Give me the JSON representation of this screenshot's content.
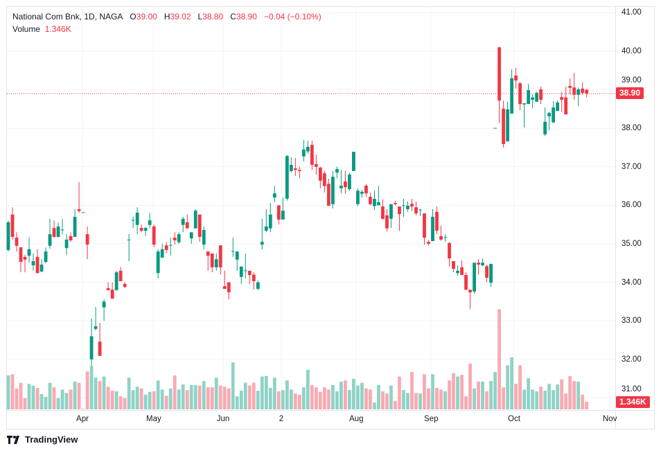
{
  "legend": {
    "symbol": "National Com Bnk, 1D, NAGA",
    "open_label": "O",
    "open": "39.00",
    "high_label": "H",
    "high": "39.02",
    "low_label": "L",
    "low": "38.80",
    "close_label": "C",
    "close": "38.90",
    "change": "−0.04 (−0.10%)",
    "volume_label": "Volume",
    "volume": "1.346K"
  },
  "price_axis": {
    "ticks": [
      "41.00",
      "40.00",
      "39.00",
      "38.00",
      "37.00",
      "36.00",
      "35.00",
      "34.00",
      "33.00",
      "32.00",
      "31.00"
    ],
    "last_price_label": "38.90",
    "last_volume_label": "1.346K"
  },
  "time_axis": {
    "ticks": [
      "Apr",
      "May",
      "Jun",
      "2",
      "Aug",
      "Sep",
      "Oct",
      "Nov"
    ]
  },
  "branding": {
    "name": "TradingView"
  },
  "colors": {
    "up": "#089981",
    "down": "#f23645",
    "volume_up": "#8fd3c6",
    "volume_down": "#f9aab2",
    "grid": "#f0f3fa"
  },
  "chart_data": {
    "type": "candlestick",
    "columns": [
      "open",
      "high",
      "low",
      "close",
      "volume_K"
    ],
    "ylim": [
      31,
      41
    ],
    "last_price": 38.9,
    "candles": [
      [
        34.84,
        35.6,
        34.8,
        35.56,
        6.0
      ],
      [
        35.76,
        35.95,
        35.11,
        35.18,
        6.2
      ],
      [
        35.16,
        35.3,
        34.8,
        34.95,
        3.7
      ],
      [
        34.91,
        34.91,
        34.26,
        34.53,
        4.7
      ],
      [
        34.66,
        34.71,
        34.26,
        34.59,
        2.0
      ],
      [
        34.69,
        35.16,
        34.51,
        34.86,
        4.5
      ],
      [
        34.44,
        34.75,
        34.3,
        34.55,
        4.2
      ],
      [
        34.66,
        34.86,
        34.24,
        34.24,
        3.8
      ],
      [
        34.28,
        34.6,
        34.26,
        34.46,
        2.7
      ],
      [
        34.53,
        34.9,
        34.5,
        34.8,
        2.2
      ],
      [
        34.95,
        35.65,
        34.87,
        35.25,
        4.7
      ],
      [
        35.41,
        35.61,
        35.16,
        35.18,
        3.9
      ],
      [
        35.18,
        35.55,
        35.16,
        35.45,
        2.0
      ],
      [
        35.36,
        35.65,
        35.25,
        35.37,
        3.5
      ],
      [
        34.89,
        35.25,
        34.71,
        35.11,
        2.9
      ],
      [
        35.2,
        35.3,
        35.05,
        35.09,
        3.5
      ],
      [
        35.18,
        35.9,
        35.18,
        35.7,
        4.9
      ],
      [
        35.9,
        36.6,
        35.8,
        35.85,
        4.7
      ],
      [
        35.81,
        35.81,
        35.81,
        35.82,
        0.1
      ],
      [
        35.25,
        35.45,
        34.6,
        34.98,
        6.7
      ],
      [
        32.0,
        33.06,
        31.8,
        32.6,
        7.6
      ],
      [
        32.79,
        33.36,
        32.75,
        32.86,
        5.6
      ],
      [
        32.46,
        32.95,
        32.09,
        32.09,
        5.0
      ],
      [
        33.35,
        33.56,
        33.0,
        33.5,
        5.8
      ],
      [
        33.85,
        34.0,
        33.78,
        33.8,
        4.0
      ],
      [
        33.81,
        34.0,
        33.56,
        33.58,
        3.3
      ],
      [
        33.8,
        34.3,
        33.78,
        34.26,
        3.2
      ],
      [
        34.3,
        34.4,
        34.03,
        34.03,
        2.3
      ],
      [
        33.96,
        34.0,
        33.85,
        33.88,
        2.0
      ],
      [
        35.1,
        35.25,
        34.55,
        35.11,
        5.6
      ],
      [
        35.61,
        35.7,
        35.41,
        35.62,
        3.4
      ],
      [
        35.49,
        35.95,
        35.25,
        35.81,
        4.0
      ],
      [
        35.41,
        35.5,
        35.3,
        35.34,
        3.7
      ],
      [
        35.34,
        35.44,
        35.2,
        35.41,
        2.6
      ],
      [
        35.49,
        35.8,
        35.41,
        35.61,
        3.1
      ],
      [
        35.45,
        35.5,
        34.91,
        34.98,
        3.2
      ],
      [
        34.24,
        34.86,
        34.1,
        34.8,
        5.1
      ],
      [
        34.64,
        35.0,
        34.64,
        34.86,
        3.5
      ],
      [
        34.96,
        35.05,
        34.75,
        34.84,
        2.4
      ],
      [
        34.96,
        35.16,
        34.7,
        34.97,
        3.7
      ],
      [
        35.16,
        35.3,
        34.98,
        35.09,
        6.0
      ],
      [
        35.04,
        35.3,
        35.0,
        35.25,
        3.5
      ],
      [
        35.49,
        35.7,
        35.3,
        35.65,
        4.4
      ],
      [
        35.56,
        35.76,
        35.4,
        35.4,
        3.4
      ],
      [
        35.14,
        35.3,
        35.0,
        35.3,
        4.3
      ],
      [
        35.4,
        35.9,
        35.4,
        35.86,
        4.3
      ],
      [
        35.76,
        35.76,
        35.05,
        35.18,
        4.2
      ],
      [
        34.98,
        35.45,
        34.86,
        35.36,
        5.0
      ],
      [
        34.8,
        34.8,
        34.3,
        34.69,
        3.9
      ],
      [
        34.75,
        34.75,
        34.26,
        34.39,
        3.9
      ],
      [
        34.39,
        34.75,
        34.3,
        34.6,
        5.6
      ],
      [
        34.96,
        34.96,
        34.2,
        34.39,
        4.2
      ],
      [
        33.9,
        34.3,
        33.83,
        33.83,
        4.0
      ],
      [
        34.0,
        34.0,
        33.56,
        33.74,
        3.7
      ],
      [
        34.8,
        35.16,
        34.66,
        34.81,
        8.3
      ],
      [
        34.59,
        34.8,
        34.3,
        34.8,
        2.3
      ],
      [
        34.14,
        34.41,
        33.96,
        34.41,
        3.3
      ],
      [
        34.3,
        34.75,
        34.1,
        34.31,
        4.7
      ],
      [
        34.3,
        34.3,
        33.96,
        34.19,
        4.2
      ],
      [
        34.2,
        34.26,
        33.81,
        34.03,
        4.7
      ],
      [
        33.83,
        34.05,
        33.8,
        34.0,
        3.3
      ],
      [
        34.98,
        35.65,
        34.86,
        35.05,
        5.8
      ],
      [
        35.34,
        35.9,
        35.3,
        35.45,
        5.9
      ],
      [
        35.4,
        36.06,
        35.3,
        35.76,
        3.8
      ],
      [
        36.2,
        36.5,
        36.08,
        36.31,
        5.6
      ],
      [
        36.0,
        36.0,
        35.5,
        35.63,
        3.2
      ],
      [
        35.63,
        36.2,
        35.63,
        35.86,
        3.4
      ],
      [
        36.17,
        37.3,
        36.12,
        37.28,
        5.1
      ],
      [
        36.89,
        37.25,
        36.85,
        37.05,
        3.5
      ],
      [
        36.96,
        37.23,
        36.76,
        36.92,
        2.8
      ],
      [
        36.92,
        37.0,
        36.7,
        36.89,
        2.6
      ],
      [
        37.27,
        37.7,
        37.14,
        37.45,
        3.9
      ],
      [
        37.4,
        37.68,
        37.34,
        37.52,
        7.0
      ],
      [
        37.57,
        37.68,
        36.92,
        37.05,
        4.3
      ],
      [
        37.07,
        37.32,
        36.8,
        37.0,
        3.9
      ],
      [
        36.98,
        37.0,
        36.44,
        36.64,
        3.1
      ],
      [
        36.83,
        36.89,
        36.33,
        36.5,
        3.9
      ],
      [
        36.56,
        36.69,
        35.99,
        35.99,
        3.5
      ],
      [
        36.03,
        36.89,
        35.92,
        36.74,
        4.3
      ],
      [
        36.85,
        37.0,
        36.7,
        36.94,
        3.2
      ],
      [
        36.44,
        36.92,
        36.31,
        36.51,
        4.9
      ],
      [
        36.62,
        36.9,
        36.3,
        36.47,
        5.1
      ],
      [
        36.42,
        36.85,
        36.37,
        36.8,
        3.4
      ],
      [
        36.89,
        37.39,
        36.89,
        37.39,
        5.4
      ],
      [
        36.03,
        36.44,
        35.98,
        36.38,
        4.2
      ],
      [
        36.3,
        36.4,
        36.2,
        36.35,
        4.7
      ],
      [
        36.51,
        36.55,
        36.22,
        36.31,
        3.7
      ],
      [
        36.22,
        36.33,
        36.0,
        36.03,
        3.5
      ],
      [
        35.98,
        36.38,
        35.88,
        36.17,
        1.2
      ],
      [
        36.0,
        36.5,
        36.0,
        36.08,
        4.3
      ],
      [
        35.97,
        36.15,
        35.63,
        35.65,
        3.2
      ],
      [
        35.74,
        35.9,
        35.32,
        35.4,
        2.8
      ],
      [
        35.65,
        36.03,
        35.41,
        36.03,
        4.2
      ],
      [
        36.06,
        36.12,
        36.0,
        36.03,
        1.5
      ],
      [
        35.97,
        35.97,
        35.34,
        35.77,
        5.8
      ],
      [
        35.99,
        36.17,
        35.7,
        36.0,
        3.4
      ],
      [
        35.9,
        36.1,
        35.83,
        35.99,
        2.9
      ],
      [
        36.04,
        36.17,
        35.85,
        35.97,
        6.6
      ],
      [
        35.95,
        36.1,
        35.74,
        35.79,
        2.9
      ],
      [
        35.88,
        35.9,
        35.72,
        35.89,
        2.8
      ],
      [
        35.79,
        35.79,
        34.98,
        35.16,
        6.2
      ],
      [
        35.05,
        35.1,
        34.95,
        35.0,
        3.7
      ],
      [
        35.07,
        35.9,
        35.07,
        35.7,
        6.2
      ],
      [
        35.83,
        35.97,
        35.25,
        35.34,
        3.8
      ],
      [
        35.2,
        35.47,
        35.08,
        35.11,
        3.5
      ],
      [
        35.16,
        35.25,
        35.05,
        35.17,
        3.2
      ],
      [
        35.02,
        35.05,
        34.41,
        34.62,
        5.1
      ],
      [
        34.55,
        34.55,
        34.26,
        34.35,
        6.4
      ],
      [
        34.24,
        34.44,
        34.17,
        34.3,
        5.8
      ],
      [
        34.39,
        34.57,
        34.19,
        34.19,
        6.1
      ],
      [
        34.19,
        34.26,
        33.8,
        33.81,
        2.3
      ],
      [
        33.81,
        33.81,
        33.31,
        33.74,
        8.1
      ],
      [
        33.76,
        34.51,
        33.7,
        34.51,
        3.7
      ],
      [
        34.51,
        34.6,
        34.2,
        34.46,
        4.9
      ],
      [
        34.44,
        34.62,
        34.42,
        34.51,
        4.9
      ],
      [
        34.42,
        34.46,
        34.0,
        34.12,
        3.2
      ],
      [
        33.99,
        34.48,
        33.88,
        34.48,
        5.0
      ],
      [
        38.0,
        38.0,
        38.0,
        38.01,
        6.6
      ],
      [
        40.1,
        40.12,
        38.13,
        38.72,
        17.7
      ],
      [
        38.51,
        38.72,
        37.5,
        37.59,
        3.9
      ],
      [
        37.66,
        38.69,
        37.66,
        38.49,
        7.8
      ],
      [
        38.38,
        39.53,
        38.38,
        39.3,
        9.2
      ],
      [
        39.37,
        39.57,
        39.03,
        39.24,
        4.5
      ],
      [
        39.17,
        39.2,
        38.47,
        38.63,
        7.8
      ],
      [
        38.62,
        38.65,
        38.02,
        38.65,
        3.5
      ],
      [
        38.63,
        39.15,
        38.63,
        38.99,
        5.5
      ],
      [
        38.74,
        38.88,
        38.52,
        38.8,
        3.5
      ],
      [
        38.69,
        38.95,
        38.69,
        38.92,
        3.2
      ],
      [
        39.01,
        39.08,
        38.63,
        38.74,
        4.0
      ],
      [
        37.84,
        38.54,
        37.8,
        38.17,
        3.3
      ],
      [
        38.31,
        38.42,
        37.95,
        38.4,
        4.5
      ],
      [
        38.15,
        38.7,
        38.15,
        38.54,
        3.4
      ],
      [
        38.45,
        38.72,
        38.45,
        38.67,
        4.4
      ],
      [
        38.81,
        38.94,
        38.42,
        38.74,
        5.3
      ],
      [
        38.8,
        39.08,
        38.36,
        38.36,
        2.8
      ],
      [
        39.1,
        39.3,
        38.87,
        39.05,
        5.9
      ],
      [
        39.06,
        39.44,
        38.74,
        38.87,
        5.0
      ],
      [
        38.87,
        39.06,
        38.58,
        39.01,
        4.9
      ],
      [
        39.03,
        39.19,
        38.87,
        38.92,
        2.6
      ],
      [
        39.0,
        39.02,
        38.8,
        38.9,
        1.346
      ]
    ]
  }
}
